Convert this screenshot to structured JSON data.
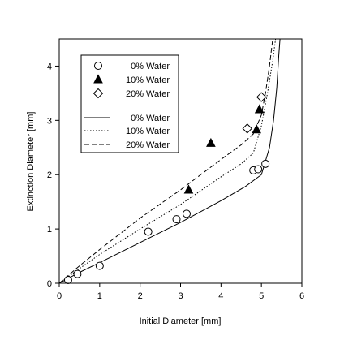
{
  "chart_data": {
    "type": "scatter",
    "xlabel": "Initial Diameter [mm]",
    "ylabel": "Extinction Diameter [mm]",
    "xlim": [
      0,
      6
    ],
    "ylim": [
      0,
      4.5
    ],
    "xticks": [
      0,
      1,
      2,
      3,
      4,
      5,
      6
    ],
    "yticks": [
      0,
      1,
      2,
      3,
      4
    ],
    "grid": false,
    "legend_placement": "top-left",
    "series": [
      {
        "name": "0% Water",
        "kind": "points",
        "marker": "circle",
        "points": [
          [
            0.22,
            0.06
          ],
          [
            0.45,
            0.17
          ],
          [
            1.0,
            0.32
          ],
          [
            2.2,
            0.95
          ],
          [
            2.9,
            1.18
          ],
          [
            3.15,
            1.28
          ],
          [
            4.8,
            2.08
          ],
          [
            4.92,
            2.1
          ],
          [
            5.1,
            2.2
          ]
        ]
      },
      {
        "name": "10% Water",
        "kind": "points",
        "marker": "triangle",
        "points": [
          [
            3.2,
            1.72
          ],
          [
            3.75,
            2.58
          ],
          [
            4.88,
            2.83
          ],
          [
            4.95,
            3.2
          ]
        ]
      },
      {
        "name": "20% Water",
        "kind": "points",
        "marker": "diamond",
        "points": [
          [
            4.65,
            2.85
          ],
          [
            5.0,
            3.43
          ]
        ]
      },
      {
        "name": "0% Water",
        "kind": "line",
        "dash": "solid",
        "points": [
          [
            0,
            0
          ],
          [
            0.5,
            0.2
          ],
          [
            1,
            0.38
          ],
          [
            2,
            0.75
          ],
          [
            3,
            1.12
          ],
          [
            4,
            1.52
          ],
          [
            4.6,
            1.78
          ],
          [
            5.0,
            2.0
          ],
          [
            5.2,
            2.5
          ],
          [
            5.3,
            3.0
          ],
          [
            5.38,
            3.6
          ],
          [
            5.43,
            4.2
          ],
          [
            5.46,
            4.5
          ]
        ]
      },
      {
        "name": "10% Water",
        "kind": "line",
        "dash": "dotted",
        "points": [
          [
            0,
            0
          ],
          [
            0.5,
            0.27
          ],
          [
            1,
            0.53
          ],
          [
            2,
            1.0
          ],
          [
            3,
            1.45
          ],
          [
            4,
            1.96
          ],
          [
            4.5,
            2.2
          ],
          [
            4.8,
            2.4
          ],
          [
            5.0,
            2.9
          ],
          [
            5.15,
            3.5
          ],
          [
            5.28,
            4.1
          ],
          [
            5.35,
            4.5
          ]
        ]
      },
      {
        "name": "20% Water",
        "kind": "line",
        "dash": "dashed",
        "points": [
          [
            0,
            0
          ],
          [
            0.5,
            0.32
          ],
          [
            1,
            0.62
          ],
          [
            2,
            1.2
          ],
          [
            3,
            1.72
          ],
          [
            4,
            2.28
          ],
          [
            4.5,
            2.55
          ],
          [
            4.8,
            2.75
          ],
          [
            5.0,
            3.1
          ],
          [
            5.1,
            3.5
          ],
          [
            5.2,
            4.0
          ],
          [
            5.28,
            4.5
          ]
        ]
      }
    ]
  }
}
